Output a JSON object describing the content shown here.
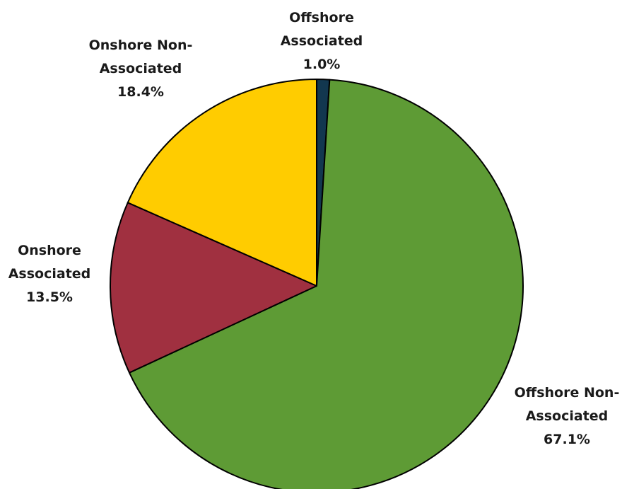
{
  "chart_data": {
    "type": "pie",
    "title": "",
    "slices": [
      {
        "label_lines": [
          "Offshore",
          "Associated"
        ],
        "value_text": "1.0%",
        "value": 1.0,
        "color": "#12374f"
      },
      {
        "label_lines": [
          "Offshore Non-",
          "Associated"
        ],
        "value_text": "67.1%",
        "value": 67.1,
        "color": "#5e9b35"
      },
      {
        "label_lines": [
          "Onshore",
          "Associated"
        ],
        "value_text": "13.5%",
        "value": 13.5,
        "color": "#a03040"
      },
      {
        "label_lines": [
          "Onshore Non-",
          "Associated"
        ],
        "value_text": "18.4%",
        "value": 18.4,
        "color": "#ffcc00"
      }
    ],
    "start_angle": "12 o'clock",
    "direction": "clockwise",
    "legend": "none"
  }
}
